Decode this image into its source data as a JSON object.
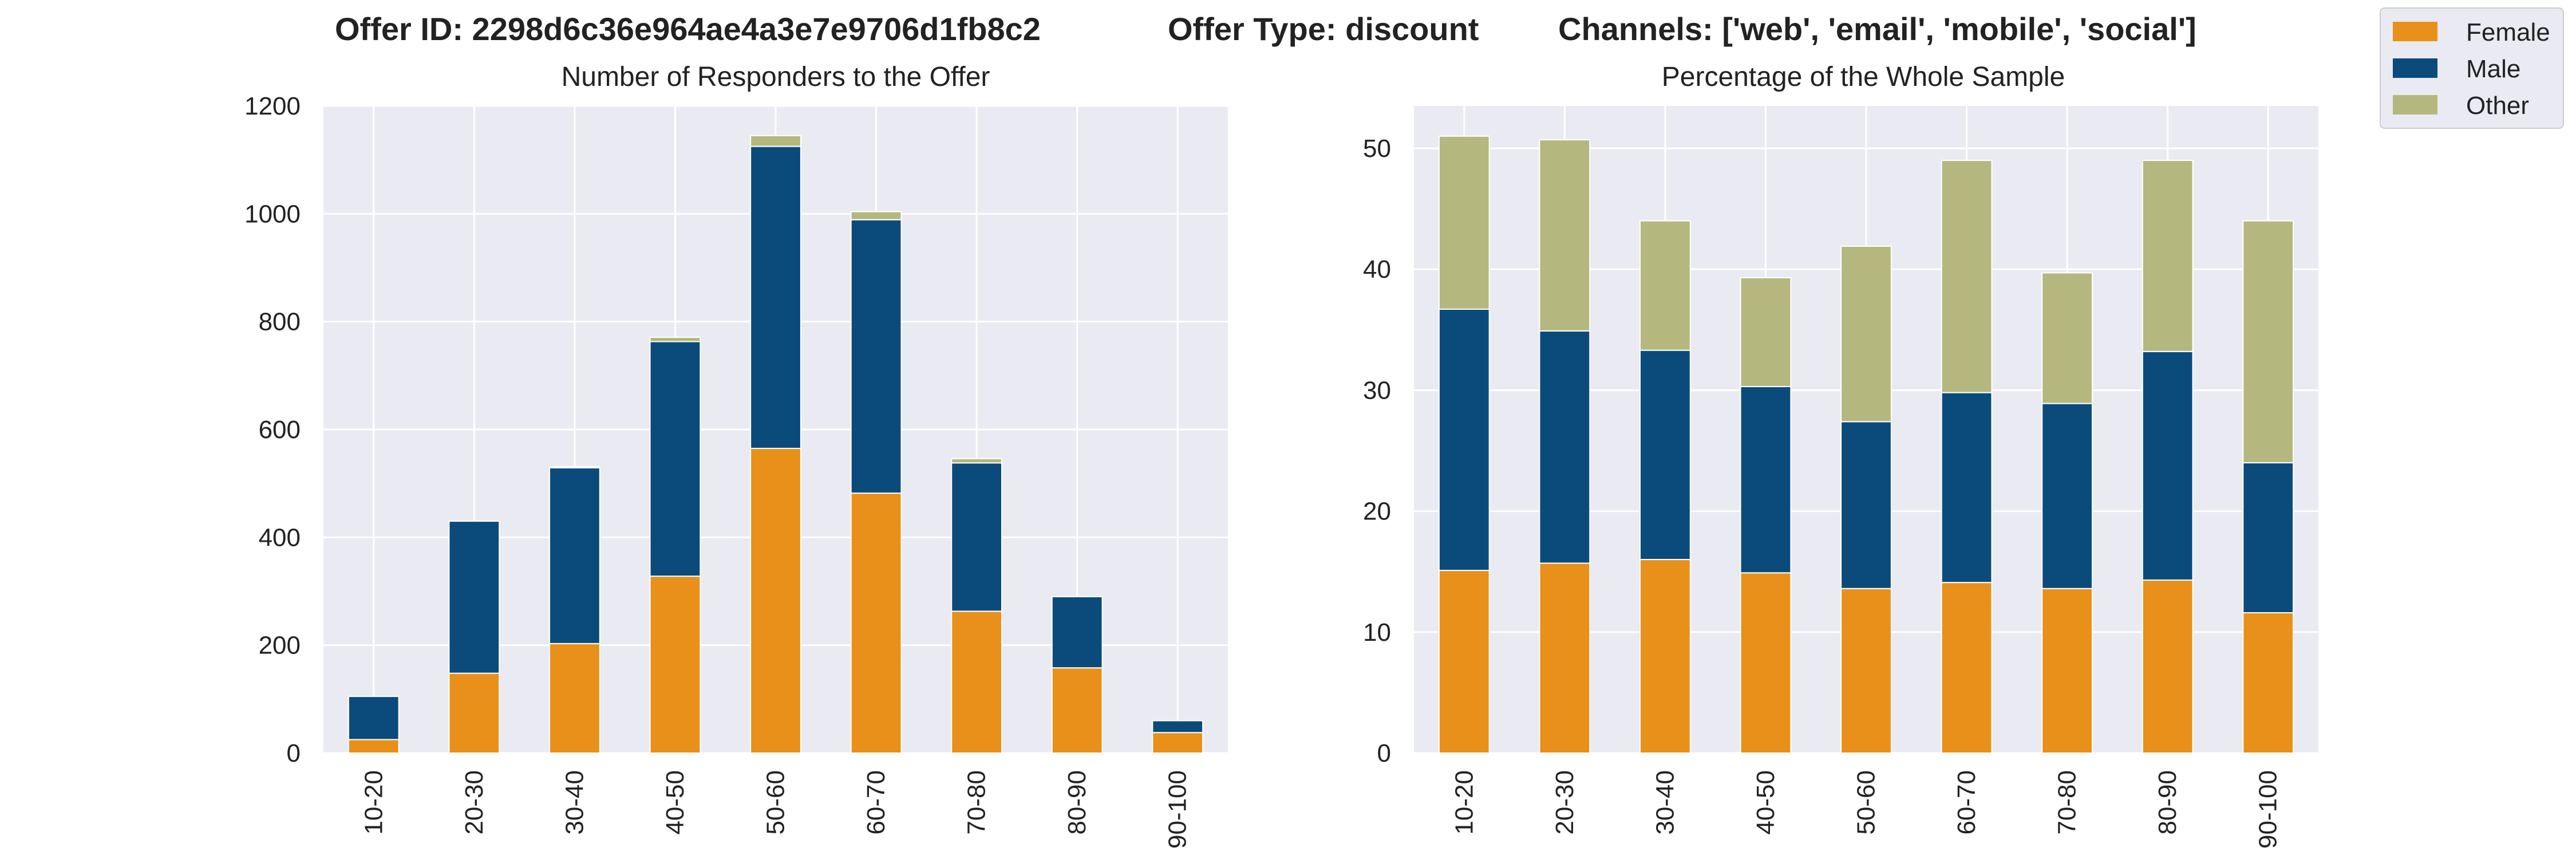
{
  "header": {
    "offer_id": "Offer ID: 2298d6c36e964ae4a3e7e9706d1fb8c2",
    "offer_type": "Offer Type: discount",
    "channels": "Channels: ['web', 'email', 'mobile', 'social']"
  },
  "colors": {
    "Female": "#E8901A",
    "Male": "#0B4B7C",
    "Other": "#B5B87E",
    "plot_background": "#EAEAF2",
    "grid": "#FFFFFF"
  },
  "legend": {
    "placement": "upper-right outside",
    "entries": [
      "Female",
      "Male",
      "Other"
    ]
  },
  "chart_data": [
    {
      "type": "bar",
      "stacked": true,
      "title": "Number of Responders to the Offer",
      "xlabel": "",
      "ylabel": "",
      "categories": [
        "10-20",
        "20-30",
        "30-40",
        "40-50",
        "50-60",
        "60-70",
        "70-80",
        "80-90",
        "90-100"
      ],
      "ylim": [
        0,
        1200
      ],
      "yticks": [
        0,
        200,
        400,
        600,
        800,
        1000,
        1200
      ],
      "grid": true,
      "series": [
        {
          "name": "Female",
          "values": [
            25,
            148,
            203,
            328,
            565,
            482,
            263,
            158,
            38
          ]
        },
        {
          "name": "Male",
          "values": [
            80,
            282,
            326,
            435,
            560,
            507,
            275,
            132,
            22
          ]
        },
        {
          "name": "Other",
          "values": [
            0,
            0,
            2,
            8,
            20,
            15,
            8,
            0,
            0
          ]
        }
      ]
    },
    {
      "type": "bar",
      "stacked": true,
      "title": "Percentage of the Whole Sample",
      "xlabel": "",
      "ylabel": "",
      "categories": [
        "10-20",
        "20-30",
        "30-40",
        "40-50",
        "50-60",
        "60-70",
        "70-80",
        "80-90",
        "90-100"
      ],
      "ylim": [
        0,
        53.5
      ],
      "yticks": [
        0,
        10,
        20,
        30,
        40,
        50
      ],
      "grid": true,
      "series": [
        {
          "name": "Female",
          "values": [
            15.1,
            15.7,
            16.0,
            14.9,
            13.6,
            14.1,
            13.6,
            14.3,
            11.6
          ]
        },
        {
          "name": "Male",
          "values": [
            21.6,
            19.2,
            17.3,
            15.4,
            13.8,
            15.7,
            15.3,
            18.9,
            12.4
          ]
        },
        {
          "name": "Other",
          "values": [
            14.3,
            15.8,
            10.7,
            9.0,
            14.5,
            19.2,
            10.8,
            15.8,
            20.0
          ]
        }
      ]
    }
  ]
}
